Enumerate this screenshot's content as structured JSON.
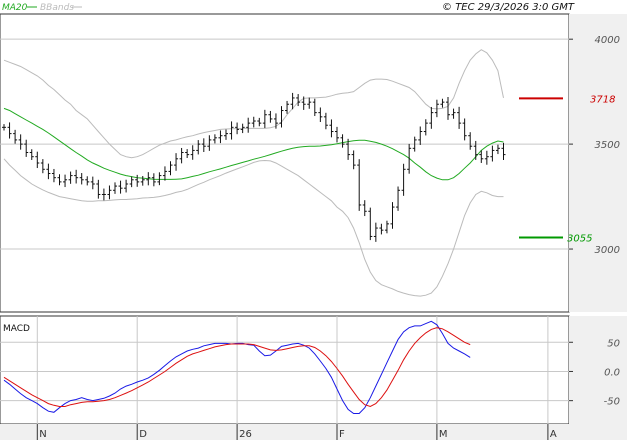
{
  "header": {
    "legend_ma": "MA20",
    "legend_bb": "BBands",
    "copyright": "© TEC 29/3/2026 3:0 GMT"
  },
  "colors": {
    "price": "#111111",
    "ma": "#22aa22",
    "bbands": "#bbbbbb",
    "macd": "#1a1ae6",
    "signal": "#dd1111",
    "resistance": "#cc0000",
    "support": "#009900",
    "grid": "#c8c8c8",
    "axis_bg": "#f0f0f0"
  },
  "chart_data": [
    {
      "type": "ohlc",
      "panel": "price",
      "ylim": [
        2700,
        4120
      ],
      "yticks": [
        {
          "value": 3000,
          "label": "3000"
        },
        {
          "value": 3500,
          "label": "3500"
        },
        {
          "value": 4000,
          "label": "4000"
        }
      ],
      "levels": [
        {
          "name": "resistance",
          "value": 3718,
          "label": "3718"
        },
        {
          "name": "support",
          "value": 3055,
          "label": "3055"
        }
      ],
      "series": [
        {
          "name": "MA20",
          "values": [
            3670,
            3660,
            3645,
            3630,
            3615,
            3600,
            3585,
            3570,
            3553,
            3535,
            3516,
            3497,
            3478,
            3460,
            3443,
            3425,
            3410,
            3398,
            3385,
            3375,
            3366,
            3357,
            3350,
            3345,
            3340,
            3338,
            3335,
            3333,
            3332,
            3332,
            3332,
            3333,
            3334,
            3340,
            3346,
            3352,
            3360,
            3368,
            3375,
            3382,
            3390,
            3398,
            3405,
            3413,
            3420,
            3428,
            3435,
            3442,
            3450,
            3458,
            3466,
            3474,
            3480,
            3485,
            3488,
            3490,
            3490,
            3491,
            3494,
            3497,
            3502,
            3507,
            3512,
            3516,
            3518,
            3518,
            3514,
            3508,
            3500,
            3490,
            3478,
            3464,
            3450,
            3433,
            3410,
            3390,
            3368,
            3350,
            3338,
            3330,
            3330,
            3340,
            3360,
            3385,
            3410,
            3440,
            3470,
            3490,
            3505,
            3515,
            3510
          ]
        },
        {
          "name": "BBands upper",
          "values": [
            3900,
            3890,
            3880,
            3870,
            3855,
            3840,
            3825,
            3805,
            3780,
            3760,
            3735,
            3710,
            3690,
            3660,
            3640,
            3620,
            3590,
            3560,
            3530,
            3500,
            3475,
            3450,
            3440,
            3435,
            3440,
            3450,
            3465,
            3480,
            3495,
            3505,
            3515,
            3520,
            3528,
            3535,
            3540,
            3548,
            3555,
            3560,
            3565,
            3570,
            3572,
            3573,
            3574,
            3575,
            3575,
            3575,
            3575,
            3575,
            3578,
            3585,
            3605,
            3640,
            3670,
            3700,
            3718,
            3720,
            3720,
            3722,
            3724,
            3730,
            3738,
            3742,
            3745,
            3750,
            3770,
            3790,
            3805,
            3810,
            3810,
            3808,
            3800,
            3790,
            3780,
            3770,
            3750,
            3720,
            3690,
            3670,
            3668,
            3670,
            3680,
            3720,
            3790,
            3850,
            3900,
            3930,
            3950,
            3935,
            3900,
            3850,
            3720
          ]
        },
        {
          "name": "BBands lower",
          "values": [
            3430,
            3400,
            3375,
            3350,
            3330,
            3310,
            3295,
            3282,
            3270,
            3260,
            3250,
            3245,
            3240,
            3235,
            3230,
            3228,
            3228,
            3230,
            3230,
            3232,
            3234,
            3236,
            3236,
            3238,
            3240,
            3243,
            3244,
            3246,
            3250,
            3255,
            3262,
            3270,
            3275,
            3284,
            3296,
            3308,
            3318,
            3330,
            3340,
            3350,
            3362,
            3372,
            3382,
            3392,
            3402,
            3413,
            3420,
            3422,
            3420,
            3410,
            3395,
            3380,
            3365,
            3350,
            3330,
            3310,
            3290,
            3270,
            3250,
            3230,
            3200,
            3180,
            3150,
            3100,
            3030,
            2950,
            2890,
            2850,
            2830,
            2820,
            2810,
            2798,
            2790,
            2783,
            2778,
            2776,
            2780,
            2790,
            2820,
            2870,
            2930,
            3000,
            3080,
            3160,
            3220,
            3260,
            3275,
            3268,
            3255,
            3250,
            3250
          ]
        },
        {
          "name": "price",
          "values": [
            3580,
            3550,
            3520,
            3500,
            3460,
            3440,
            3410,
            3380,
            3360,
            3340,
            3320,
            3330,
            3350,
            3340,
            3330,
            3320,
            3310,
            3260,
            3260,
            3280,
            3300,
            3290,
            3310,
            3330,
            3320,
            3330,
            3340,
            3320,
            3350,
            3370,
            3400,
            3430,
            3460,
            3450,
            3470,
            3500,
            3490,
            3520,
            3530,
            3540,
            3550,
            3580,
            3570,
            3580,
            3600,
            3610,
            3600,
            3640,
            3620,
            3600,
            3660,
            3690,
            3720,
            3700,
            3690,
            3700,
            3650,
            3630,
            3590,
            3560,
            3530,
            3500,
            3450,
            3400,
            3210,
            3180,
            3060,
            3100,
            3090,
            3120,
            3200,
            3280,
            3380,
            3480,
            3520,
            3560,
            3600,
            3650,
            3690,
            3700,
            3640,
            3650,
            3600,
            3540,
            3490,
            3450,
            3430,
            3440,
            3470,
            3480,
            3450
          ]
        }
      ]
    },
    {
      "type": "line",
      "panel": "macd",
      "title": "MACD",
      "ylim": [
        -90,
        95
      ],
      "yticks": [
        {
          "value": 50,
          "label": "50"
        },
        {
          "value": 0,
          "label": "0.0"
        },
        {
          "value": -50,
          "label": "-50"
        }
      ],
      "x_axis_labels": [
        {
          "index": 6,
          "label": "N"
        },
        {
          "index": 24,
          "label": "D"
        },
        {
          "index": 42,
          "label": "26"
        },
        {
          "index": 60,
          "label": "F"
        },
        {
          "index": 78,
          "label": "M"
        },
        {
          "index": 98,
          "label": "A"
        }
      ],
      "series": [
        {
          "name": "MACD",
          "values": [
            -15,
            -22,
            -30,
            -38,
            -45,
            -50,
            -55,
            -62,
            -68,
            -70,
            -62,
            -55,
            -50,
            -48,
            -45,
            -48,
            -50,
            -48,
            -46,
            -42,
            -37,
            -30,
            -25,
            -22,
            -18,
            -15,
            -11,
            -5,
            2,
            10,
            18,
            25,
            30,
            35,
            38,
            40,
            44,
            46,
            48,
            48,
            48,
            47,
            48,
            48,
            46,
            45,
            35,
            27,
            28,
            35,
            43,
            45,
            47,
            48,
            45,
            40,
            30,
            18,
            5,
            -10,
            -30,
            -50,
            -65,
            -72,
            -72,
            -62,
            -45,
            -25,
            -5,
            15,
            35,
            55,
            68,
            75,
            78,
            78,
            82,
            86,
            80,
            65,
            48,
            40,
            35,
            30,
            24
          ]
        },
        {
          "name": "Signal",
          "values": [
            -10,
            -16,
            -22,
            -28,
            -34,
            -40,
            -45,
            -50,
            -55,
            -58,
            -60,
            -60,
            -57,
            -55,
            -53,
            -52,
            -52,
            -51,
            -50,
            -48,
            -45,
            -41,
            -37,
            -33,
            -28,
            -23,
            -18,
            -12,
            -6,
            0,
            7,
            14,
            20,
            26,
            30,
            33,
            36,
            39,
            42,
            44,
            46,
            47,
            47,
            47,
            47,
            46,
            43,
            40,
            37,
            36,
            37,
            39,
            41,
            43,
            44,
            44,
            41,
            35,
            27,
            17,
            5,
            -8,
            -22,
            -35,
            -48,
            -57,
            -60,
            -55,
            -45,
            -32,
            -15,
            2,
            20,
            35,
            48,
            58,
            66,
            72,
            75,
            73,
            68,
            62,
            56,
            50,
            46
          ]
        }
      ]
    }
  ]
}
